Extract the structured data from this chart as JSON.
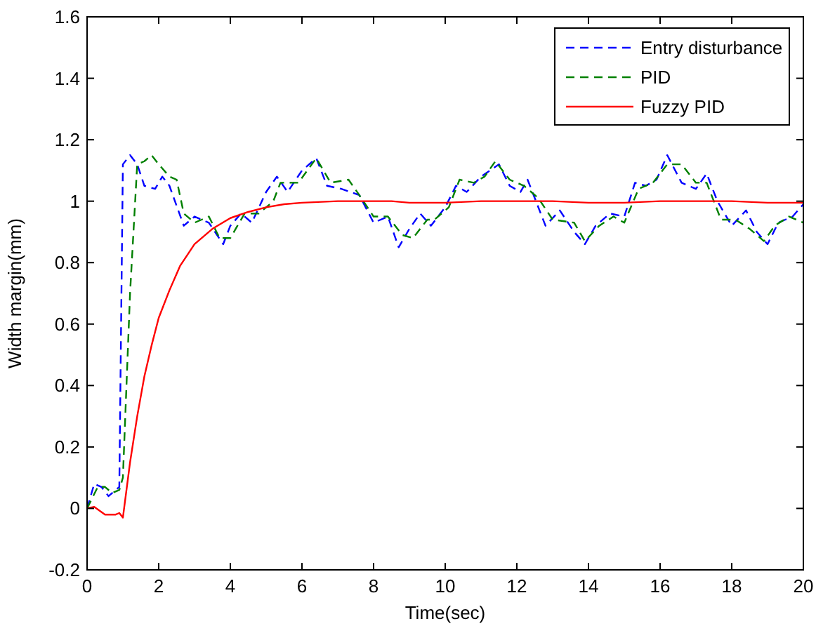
{
  "chart_data": {
    "type": "line",
    "xlabel": "Time(sec)",
    "ylabel": "Width margin(mm)",
    "xlim": [
      0,
      20
    ],
    "ylim": [
      -0.2,
      1.6
    ],
    "xticks": [
      0,
      2,
      4,
      6,
      8,
      10,
      12,
      14,
      16,
      18,
      20
    ],
    "yticks": [
      -0.2,
      0,
      0.2,
      0.4,
      0.6,
      0.8,
      1,
      1.2,
      1.4,
      1.6
    ],
    "grid": false,
    "legend": "top right",
    "series": [
      {
        "name": "Entry disturbance",
        "color": "#0000ff",
        "line_style": "dashed",
        "x": [
          0,
          0.2,
          0.4,
          0.6,
          0.9,
          0.95,
          1.0,
          1.2,
          1.4,
          1.6,
          1.9,
          2.1,
          2.3,
          2.7,
          3.0,
          3.4,
          3.8,
          4.0,
          4.3,
          4.6,
          5.0,
          5.3,
          5.6,
          6.0,
          6.4,
          6.7,
          7.1,
          7.6,
          8.0,
          8.4,
          8.7,
          9.0,
          9.3,
          9.6,
          10.0,
          10.3,
          10.6,
          11.0,
          11.5,
          11.8,
          12.1,
          12.3,
          12.8,
          13.2,
          13.6,
          13.9,
          14.2,
          14.6,
          15.0,
          15.3,
          15.6,
          15.9,
          16.2,
          16.6,
          17.0,
          17.3,
          17.6,
          18.0,
          18.4,
          18.7,
          19.0,
          19.3,
          19.7,
          20
        ],
        "values": [
          0.0,
          0.08,
          0.07,
          0.04,
          0.07,
          0.6,
          1.12,
          1.15,
          1.12,
          1.05,
          1.04,
          1.08,
          1.05,
          0.92,
          0.95,
          0.93,
          0.86,
          0.92,
          0.96,
          0.93,
          1.03,
          1.08,
          1.03,
          1.1,
          1.14,
          1.05,
          1.04,
          1.02,
          0.93,
          0.95,
          0.85,
          0.91,
          0.96,
          0.92,
          0.98,
          1.05,
          1.03,
          1.08,
          1.12,
          1.05,
          1.03,
          1.07,
          0.92,
          0.97,
          0.9,
          0.86,
          0.92,
          0.96,
          0.95,
          1.06,
          1.05,
          1.07,
          1.15,
          1.06,
          1.04,
          1.09,
          1.0,
          0.92,
          0.97,
          0.9,
          0.86,
          0.93,
          0.95,
          0.99
        ]
      },
      {
        "name": "PID",
        "color": "#008000",
        "line_style": "dashed",
        "x": [
          0,
          0.3,
          0.5,
          0.7,
          0.9,
          1.0,
          1.2,
          1.4,
          1.6,
          1.8,
          2.0,
          2.3,
          2.5,
          2.7,
          3.0,
          3.4,
          3.7,
          4.0,
          4.4,
          4.8,
          5.2,
          5.4,
          5.9,
          6.4,
          6.8,
          7.3,
          7.6,
          8.0,
          8.4,
          8.8,
          9.1,
          9.5,
          9.7,
          10.1,
          10.4,
          10.8,
          11.1,
          11.4,
          11.8,
          12.2,
          12.6,
          13.0,
          13.6,
          13.9,
          14.3,
          14.7,
          15.0,
          15.4,
          15.8,
          16.2,
          16.6,
          17.0,
          17.3,
          17.7,
          18.1,
          18.5,
          18.9,
          19.2,
          19.6,
          20
        ],
        "values": [
          0,
          0.07,
          0.07,
          0.05,
          0.06,
          0.1,
          0.7,
          1.12,
          1.13,
          1.15,
          1.12,
          1.08,
          1.07,
          0.96,
          0.93,
          0.95,
          0.88,
          0.88,
          0.96,
          0.96,
          1.0,
          1.06,
          1.06,
          1.14,
          1.06,
          1.07,
          1.02,
          0.95,
          0.95,
          0.89,
          0.88,
          0.94,
          0.94,
          0.98,
          1.07,
          1.06,
          1.08,
          1.13,
          1.07,
          1.05,
          1.01,
          0.94,
          0.93,
          0.87,
          0.92,
          0.95,
          0.93,
          1.04,
          1.06,
          1.12,
          1.12,
          1.06,
          1.06,
          0.94,
          0.94,
          0.91,
          0.87,
          0.92,
          0.95,
          0.93
        ]
      },
      {
        "name": "Fuzzy PID",
        "color": "#ff0000",
        "line_style": "solid",
        "x": [
          0,
          0.2,
          0.5,
          0.8,
          0.9,
          1.0,
          1.2,
          1.4,
          1.6,
          1.8,
          2.0,
          2.3,
          2.6,
          3.0,
          3.5,
          4.0,
          4.5,
          5.0,
          5.5,
          6.0,
          7.0,
          8.0,
          8.5,
          9,
          10,
          11,
          12,
          13,
          14,
          15,
          16,
          17,
          18,
          19,
          20
        ],
        "values": [
          0,
          0.005,
          -0.02,
          -0.02,
          -0.015,
          -0.03,
          0.15,
          0.3,
          0.43,
          0.53,
          0.62,
          0.71,
          0.79,
          0.86,
          0.91,
          0.945,
          0.965,
          0.98,
          0.99,
          0.995,
          1.0,
          1.0,
          1.0,
          0.995,
          0.995,
          1.0,
          1.0,
          1.0,
          0.995,
          0.995,
          1.0,
          1.0,
          1.0,
          0.995,
          0.995
        ]
      }
    ]
  }
}
